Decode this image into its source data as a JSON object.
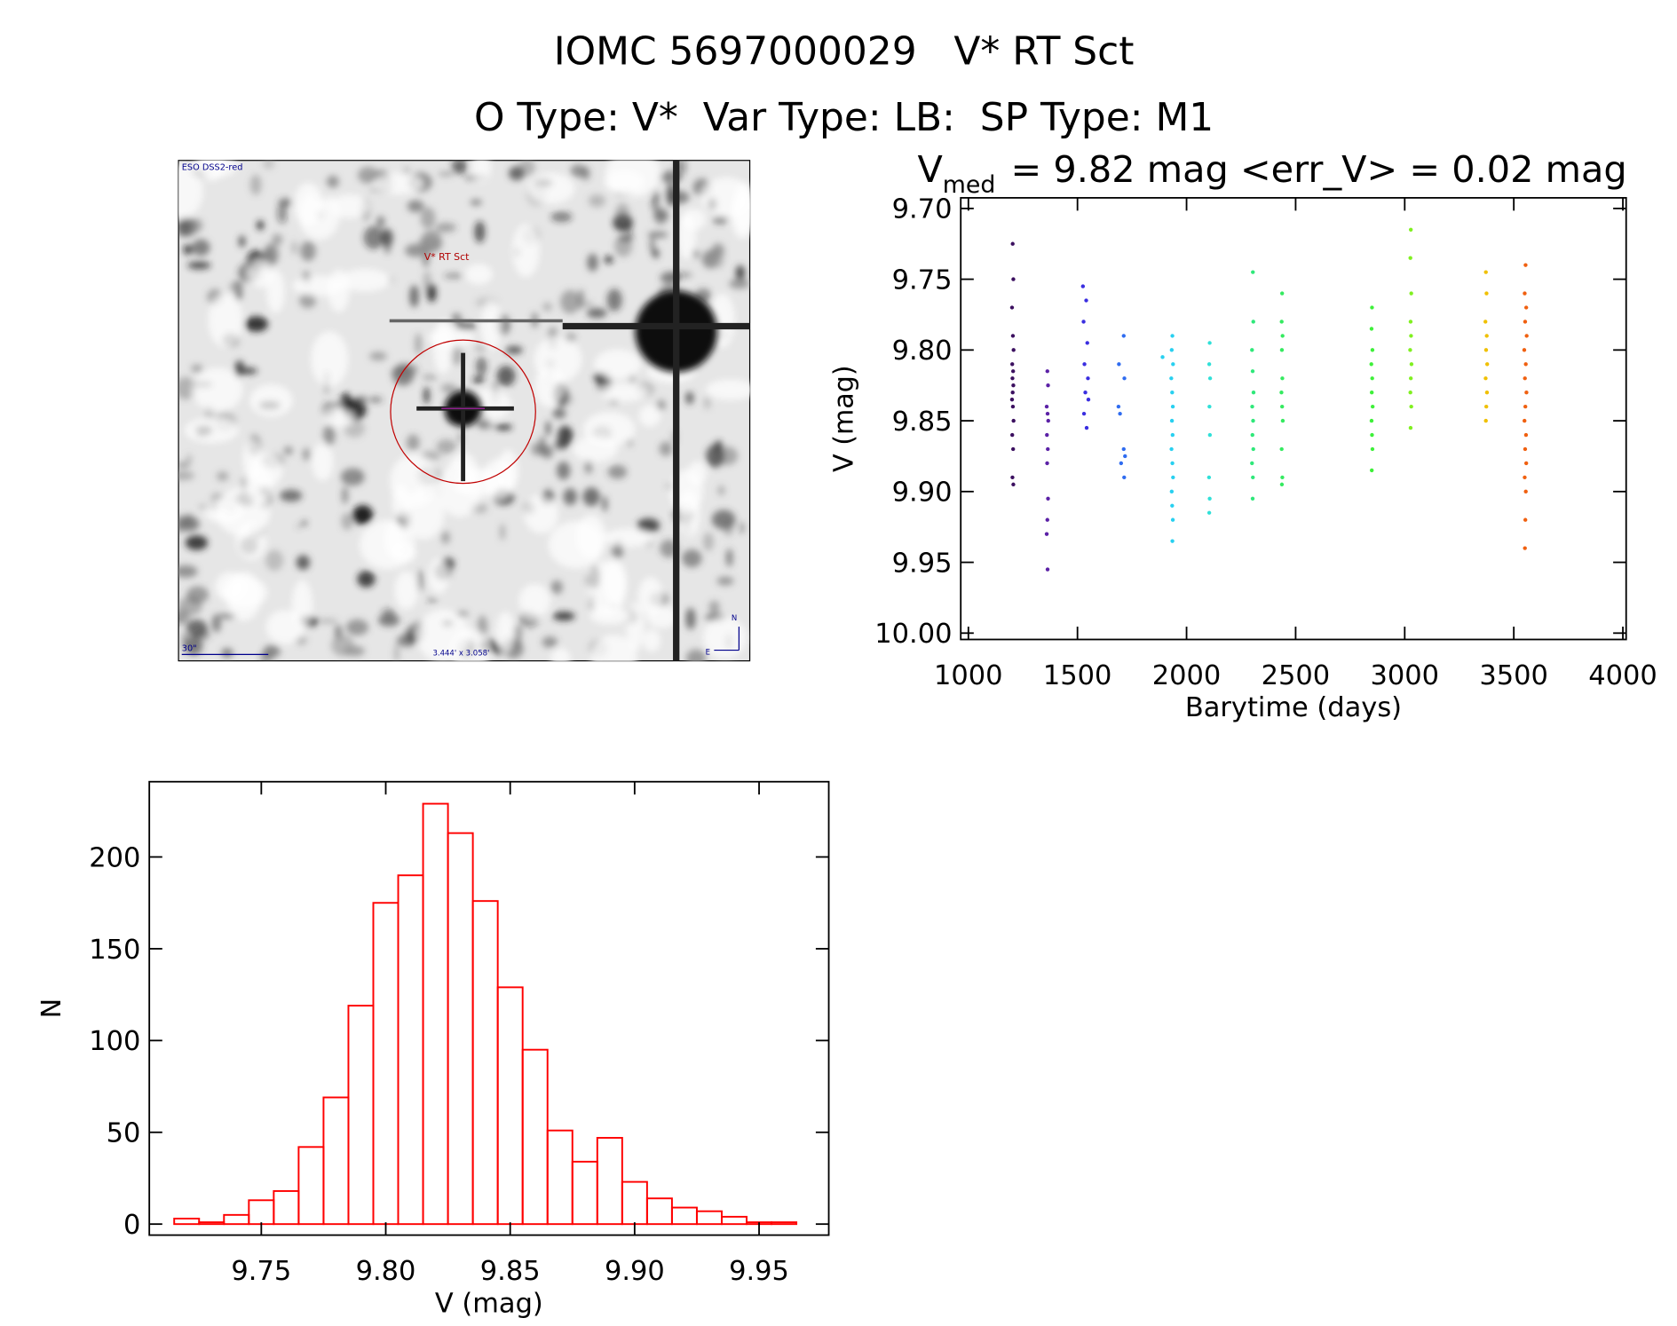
{
  "header": {
    "title": "IOMC 5697000029   V* RT Sct",
    "subtitle": "O Type: V*  Var Type: LB:  SP Type: M1"
  },
  "image": {
    "survey": "ESO DSS2-red",
    "target": "V* RT Sct",
    "scale": "30\"",
    "fov": "3.444' x 3.058'",
    "north": "N",
    "east": "E"
  },
  "chart_data": [
    {
      "type": "scatter",
      "title": {
        "main": "V",
        "subscript": "med",
        "rest": "= 9.82 mag <err_V> = 0.02 mag"
      },
      "xlabel": "Barytime (days)",
      "ylabel": "V (mag)",
      "xlim": [
        965,
        4015
      ],
      "ylim": [
        9.6925,
        10.0045
      ],
      "y_inverted": true,
      "xticks": [
        1000,
        1500,
        2000,
        2500,
        3000,
        3500,
        4000
      ],
      "yticks": [
        {
          "value": 9.7,
          "label": "9.70"
        },
        9.75,
        {
          "value": 9.8,
          "label": "9.80"
        },
        9.85,
        {
          "value": 9.9,
          "label": "9.90"
        },
        9.95,
        {
          "value": 10.0,
          "label": "10.00"
        }
      ],
      "series": [
        {
          "color": "#3b0f5f",
          "x": [
            1203,
            1206,
            1200,
            1204,
            1207,
            1201,
            1205,
            1202,
            1206,
            1203,
            1200,
            1204,
            1207,
            1201,
            1205,
            1202,
            1206
          ],
          "values": [
            9.725,
            9.75,
            9.77,
            9.79,
            9.8,
            9.81,
            9.815,
            9.82,
            9.825,
            9.83,
            9.835,
            9.84,
            9.85,
            9.86,
            9.87,
            9.89,
            9.895
          ]
        },
        {
          "color": "#5b21a6",
          "x": [
            1362,
            1365,
            1359,
            1363,
            1366,
            1360,
            1364,
            1361,
            1365,
            1362,
            1359,
            1363
          ],
          "values": [
            9.815,
            9.825,
            9.84,
            9.845,
            9.85,
            9.86,
            9.87,
            9.88,
            9.905,
            9.92,
            9.93,
            9.955
          ]
        },
        {
          "color": "#3a2ee0",
          "x": [
            1525,
            1540,
            1528,
            1545,
            1532,
            1548,
            1536,
            1550,
            1530,
            1542
          ],
          "values": [
            9.755,
            9.765,
            9.78,
            9.795,
            9.81,
            9.82,
            9.83,
            9.835,
            9.845,
            9.855
          ]
        },
        {
          "color": "#2f6cf0",
          "x": [
            1712,
            1690,
            1715,
            1688,
            1695,
            1712,
            1718,
            1700,
            1714
          ],
          "values": [
            9.79,
            9.81,
            9.82,
            9.84,
            9.845,
            9.87,
            9.875,
            9.88,
            9.89
          ]
        },
        {
          "color": "#28d0f0",
          "x": [
            1935,
            1932,
            1938,
            1930,
            1934,
            1937,
            1933,
            1936,
            1931,
            1935,
            1938,
            1932,
            1934,
            1937,
            1935,
            1890
          ],
          "values": [
            9.79,
            9.8,
            9.81,
            9.82,
            9.83,
            9.84,
            9.85,
            9.86,
            9.87,
            9.88,
            9.89,
            9.9,
            9.91,
            9.92,
            9.935,
            9.805
          ]
        },
        {
          "color": "#30e0d8",
          "x": [
            2106,
            2104,
            2108,
            2105,
            2107,
            2103,
            2106,
            2104
          ],
          "values": [
            9.795,
            9.81,
            9.82,
            9.84,
            9.86,
            9.89,
            9.905,
            9.915
          ]
        },
        {
          "color": "#2fe87a",
          "x": [
            2304,
            2306,
            2300,
            2303,
            2307,
            2301,
            2305,
            2302,
            2306,
            2300,
            2304,
            2303
          ],
          "values": [
            9.745,
            9.78,
            9.8,
            9.815,
            9.83,
            9.84,
            9.85,
            9.86,
            9.87,
            9.88,
            9.89,
            9.905
          ]
        },
        {
          "color": "#35ea60",
          "x": [
            2438,
            2436,
            2440,
            2437,
            2439,
            2435,
            2438,
            2441,
            2436,
            2439,
            2437
          ],
          "values": [
            9.76,
            9.78,
            9.79,
            9.8,
            9.82,
            9.83,
            9.84,
            9.85,
            9.87,
            9.89,
            9.895
          ]
        },
        {
          "color": "#3ef03a",
          "x": [
            2850,
            2848,
            2852,
            2847,
            2851,
            2849,
            2853,
            2848,
            2850,
            2852,
            2849
          ],
          "values": [
            9.77,
            9.785,
            9.8,
            9.81,
            9.82,
            9.83,
            9.84,
            9.85,
            9.86,
            9.87,
            9.885
          ]
        },
        {
          "color": "#80f020",
          "x": [
            3028,
            3026,
            3030,
            3027,
            3029,
            3025,
            3031,
            3028,
            3026,
            3030,
            3027
          ],
          "values": [
            9.715,
            9.735,
            9.76,
            9.78,
            9.79,
            9.8,
            9.81,
            9.82,
            9.83,
            9.84,
            9.855
          ]
        },
        {
          "color": "#f0c000",
          "x": [
            3372,
            3375,
            3370,
            3376,
            3373,
            3378,
            3371,
            3377,
            3374,
            3372
          ],
          "values": [
            9.745,
            9.76,
            9.78,
            9.79,
            9.8,
            9.81,
            9.82,
            9.83,
            9.84,
            9.85
          ]
        },
        {
          "color": "#f06010",
          "x": [
            3554,
            3550,
            3557,
            3552,
            3559,
            3548,
            3555,
            3551,
            3558,
            3553,
            3549,
            3556,
            3552,
            3557,
            3550,
            3555,
            3553,
            3551
          ],
          "values": [
            9.74,
            9.76,
            9.77,
            9.78,
            9.79,
            9.8,
            9.81,
            9.82,
            9.83,
            9.84,
            9.85,
            9.86,
            9.87,
            9.88,
            9.89,
            9.9,
            9.92,
            9.94
          ]
        }
      ]
    },
    {
      "type": "histogram",
      "xlabel": "V (mag)",
      "ylabel": "N",
      "color": "#ff0000",
      "xlim": [
        9.705,
        9.978
      ],
      "ylim": [
        -6,
        241
      ],
      "xticks": [
        9.75,
        {
          "value": 9.8,
          "label": "9.80"
        },
        9.85,
        {
          "value": 9.9,
          "label": "9.90"
        },
        9.95
      ],
      "yticks": [
        0,
        50,
        100,
        150,
        200
      ],
      "bins": [
        9.715,
        9.725,
        9.735,
        9.745,
        9.755,
        9.765,
        9.775,
        9.785,
        9.795,
        9.805,
        9.815,
        9.825,
        9.835,
        9.845,
        9.855,
        9.865,
        9.875,
        9.885,
        9.895,
        9.905,
        9.915,
        9.925,
        9.935,
        9.945,
        9.955,
        9.965
      ],
      "counts": [
        3,
        1,
        5,
        13,
        18,
        42,
        69,
        119,
        175,
        190,
        229,
        213,
        176,
        129,
        95,
        51,
        34,
        47,
        23,
        14,
        9,
        7,
        4,
        1,
        1
      ]
    }
  ]
}
